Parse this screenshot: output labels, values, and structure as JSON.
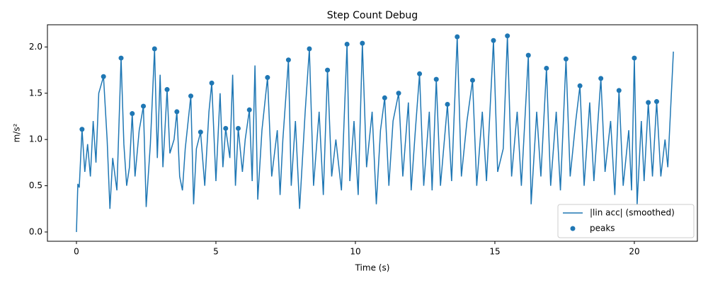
{
  "chart_data": {
    "type": "line",
    "title": "Step Count Debug",
    "x_label": "Time (s)",
    "y_label": "m/s²",
    "xlim": [
      -1.04,
      22.26
    ],
    "ylim": [
      -0.1,
      2.24
    ],
    "xticks": [
      0,
      5,
      10,
      15,
      20
    ],
    "yticks": [
      {
        "value": 0,
        "label": "0.0"
      },
      0.5,
      {
        "value": 1,
        "label": "1.0"
      },
      1.5,
      {
        "value": 2,
        "label": "2.0"
      }
    ],
    "legend": "lower right",
    "series": [
      {
        "name": "|lin acc| (smoothed)",
        "type": "line",
        "color": "#1f77b4",
        "x": [
          0,
          0.05,
          0.1,
          0.2,
          0.3,
          0.4,
          0.5,
          0.6,
          0.7,
          0.8,
          0.97,
          1.1,
          1.2,
          1.3,
          1.45,
          1.6,
          1.7,
          1.8,
          1.9,
          2.0,
          2.1,
          2.25,
          2.4,
          2.5,
          2.65,
          2.8,
          2.9,
          3.0,
          3.1,
          3.25,
          3.35,
          3.5,
          3.6,
          3.7,
          3.8,
          3.9,
          4.1,
          4.2,
          4.3,
          4.45,
          4.6,
          4.75,
          4.85,
          5.0,
          5.15,
          5.25,
          5.35,
          5.5,
          5.6,
          5.7,
          5.8,
          5.95,
          6.05,
          6.2,
          6.3,
          6.4,
          6.5,
          6.65,
          6.85,
          7.0,
          7.2,
          7.3,
          7.4,
          7.6,
          7.7,
          7.85,
          8.0,
          8.2,
          8.35,
          8.5,
          8.7,
          8.85,
          9.0,
          9.15,
          9.3,
          9.5,
          9.7,
          9.8,
          9.95,
          10.1,
          10.25,
          10.4,
          10.6,
          10.75,
          10.9,
          11.05,
          11.2,
          11.35,
          11.55,
          11.7,
          11.9,
          12.0,
          12.15,
          12.3,
          12.45,
          12.65,
          12.75,
          12.9,
          13.05,
          13.3,
          13.45,
          13.65,
          13.8,
          14.0,
          14.2,
          14.35,
          14.55,
          14.7,
          14.95,
          15.1,
          15.3,
          15.45,
          15.6,
          15.8,
          15.95,
          16.2,
          16.3,
          16.5,
          16.65,
          16.85,
          17.0,
          17.2,
          17.35,
          17.55,
          17.7,
          17.9,
          18.05,
          18.2,
          18.4,
          18.55,
          18.8,
          18.95,
          19.15,
          19.3,
          19.45,
          19.6,
          19.8,
          19.9,
          20.0,
          20.1,
          20.25,
          20.35,
          20.5,
          20.65,
          20.8,
          20.95,
          21.1,
          21.2,
          21.4
        ],
        "values": [
          0,
          0.52,
          0.48,
          1.11,
          0.65,
          0.95,
          0.6,
          1.2,
          0.75,
          1.5,
          1.68,
          1.0,
          0.25,
          0.8,
          0.45,
          1.88,
          0.95,
          0.5,
          0.7,
          1.28,
          0.6,
          1.1,
          1.36,
          0.27,
          0.95,
          1.98,
          0.8,
          1.7,
          0.7,
          1.54,
          0.85,
          1.0,
          1.3,
          0.6,
          0.45,
          0.9,
          1.47,
          0.3,
          0.9,
          1.08,
          0.5,
          1.3,
          1.61,
          0.55,
          1.5,
          0.7,
          1.12,
          0.8,
          1.7,
          0.5,
          1.12,
          0.65,
          1.0,
          1.32,
          0.55,
          1.8,
          0.35,
          1.1,
          1.67,
          0.6,
          1.1,
          0.4,
          1.0,
          1.86,
          0.5,
          1.2,
          0.25,
          1.3,
          1.98,
          0.5,
          1.3,
          0.4,
          1.75,
          0.6,
          1.0,
          0.45,
          2.03,
          0.55,
          1.2,
          0.4,
          2.04,
          0.7,
          1.3,
          0.3,
          1.1,
          1.45,
          0.5,
          1.2,
          1.5,
          0.6,
          1.4,
          0.45,
          1.1,
          1.71,
          0.5,
          1.3,
          0.45,
          1.65,
          0.5,
          1.38,
          0.55,
          2.11,
          0.6,
          1.2,
          1.64,
          0.5,
          1.3,
          0.55,
          2.07,
          0.65,
          0.9,
          2.12,
          0.6,
          1.3,
          0.5,
          1.91,
          0.3,
          1.3,
          0.6,
          1.77,
          0.5,
          1.3,
          0.45,
          1.87,
          0.6,
          1.2,
          1.58,
          0.5,
          1.4,
          0.55,
          1.66,
          0.65,
          1.2,
          0.4,
          1.53,
          0.5,
          1.1,
          0.45,
          1.88,
          0.3,
          1.2,
          0.55,
          1.4,
          0.6,
          1.41,
          0.6,
          1.0,
          0.7,
          1.95
        ]
      },
      {
        "name": "peaks",
        "type": "scatter",
        "color": "#1f77b4",
        "x": [
          0.2,
          0.97,
          1.6,
          2.0,
          2.4,
          2.8,
          3.25,
          3.6,
          4.1,
          4.45,
          4.85,
          5.35,
          5.8,
          6.2,
          6.85,
          7.6,
          8.35,
          9.0,
          9.7,
          10.25,
          11.05,
          11.55,
          12.3,
          12.9,
          13.3,
          13.65,
          14.2,
          14.95,
          15.45,
          16.2,
          16.85,
          17.55,
          18.05,
          18.8,
          19.45,
          20.0,
          20.5,
          20.8
        ],
        "values": [
          1.11,
          1.68,
          1.88,
          1.28,
          1.36,
          1.98,
          1.54,
          1.3,
          1.47,
          1.08,
          1.61,
          1.12,
          1.12,
          1.32,
          1.67,
          1.86,
          1.98,
          1.75,
          2.03,
          2.04,
          1.45,
          1.5,
          1.71,
          1.65,
          1.38,
          2.11,
          1.64,
          2.07,
          2.12,
          1.91,
          1.77,
          1.87,
          1.58,
          1.66,
          1.53,
          1.88,
          1.4,
          1.41
        ]
      }
    ]
  }
}
